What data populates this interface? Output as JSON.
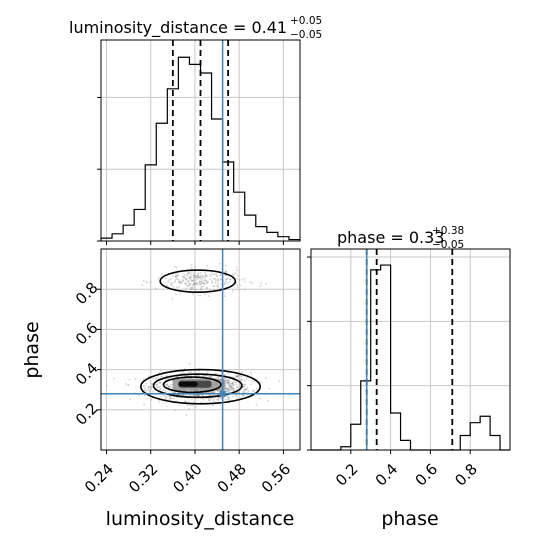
{
  "chart_data": {
    "type": "corner",
    "parameters": [
      "luminosity_distance",
      "phase"
    ],
    "truths": {
      "luminosity_distance": 0.45,
      "phase": 0.28
    },
    "colors": {
      "hist": "#000000",
      "truth": "#4682b4",
      "quantile": "#000000",
      "grid": "#c8c8c8",
      "points": "#808080"
    },
    "marginals": [
      {
        "parameter": "luminosity_distance",
        "title_text": "luminosity_distance = 0.41",
        "title_sup": "+0.05",
        "title_sub": "−0.05",
        "quantiles": [
          0.36,
          0.41,
          0.46
        ],
        "xlim": [
          0.23,
          0.59
        ],
        "xticks": [
          0.24,
          0.32,
          0.4,
          0.48,
          0.56
        ],
        "xtick_labels": [
          "0.24",
          "0.32",
          "0.40",
          "0.48",
          "0.56"
        ],
        "bin_edges": [
          0.23,
          0.25,
          0.27,
          0.29,
          0.31,
          0.33,
          0.35,
          0.37,
          0.39,
          0.41,
          0.43,
          0.45,
          0.47,
          0.49,
          0.51,
          0.53,
          0.55,
          0.57,
          0.59
        ],
        "counts": [
          2,
          5,
          11,
          22,
          53,
          82,
          106,
          128,
          123,
          117,
          85,
          55,
          34,
          18,
          10,
          6,
          3,
          1
        ],
        "ymax": 140,
        "yticks": [
          0,
          50,
          100
        ]
      },
      {
        "parameter": "phase",
        "title_text": "phase = 0.33",
        "title_sup": "+0.38",
        "title_sub": "−0.05",
        "quantiles": [
          0.28,
          0.33,
          0.71
        ],
        "xlim": [
          0.0,
          1.0
        ],
        "xticks": [
          0.2,
          0.4,
          0.6,
          0.8
        ],
        "xtick_labels": [
          "0.2",
          "0.4",
          "0.6",
          "0.8"
        ],
        "bin_edges": [
          0.0,
          0.05,
          0.1,
          0.15,
          0.2,
          0.25,
          0.3,
          0.35,
          0.4,
          0.45,
          0.5,
          0.55,
          0.6,
          0.65,
          0.7,
          0.75,
          0.8,
          0.85,
          0.9,
          0.95,
          1.0
        ],
        "counts": [
          0,
          0,
          0,
          2,
          16,
          43,
          112,
          115,
          23,
          6,
          0,
          0,
          0,
          0,
          0,
          9,
          17,
          21,
          9,
          0
        ],
        "ymax": 125,
        "yticks": [
          0,
          40,
          80,
          120
        ]
      }
    ],
    "joint": {
      "x": "luminosity_distance",
      "y": "phase",
      "xlim": [
        0.23,
        0.59
      ],
      "ylim": [
        0.0,
        1.0
      ],
      "xticks": [
        0.24,
        0.32,
        0.4,
        0.48,
        0.56
      ],
      "xtick_labels": [
        "0.24",
        "0.32",
        "0.40",
        "0.48",
        "0.56"
      ],
      "yticks": [
        0.2,
        0.4,
        0.6,
        0.8
      ],
      "ytick_labels": [
        "0.2",
        "0.4",
        "0.6",
        "0.8"
      ],
      "clusters": [
        {
          "cx": 0.41,
          "cy": 0.315,
          "sx": 0.045,
          "sy": 0.035,
          "n": 1100
        },
        {
          "cx": 0.41,
          "cy": 0.84,
          "sx": 0.04,
          "sy": 0.03,
          "n": 260
        }
      ],
      "contours": [
        {
          "cx": 0.405,
          "cy": 0.84,
          "rx": 0.068,
          "ry": 0.055
        },
        {
          "cx": 0.41,
          "cy": 0.315,
          "rx": 0.108,
          "ry": 0.085
        },
        {
          "cx": 0.405,
          "cy": 0.32,
          "rx": 0.08,
          "ry": 0.058
        },
        {
          "cx": 0.395,
          "cy": 0.325,
          "rx": 0.052,
          "ry": 0.038
        }
      ],
      "density_core": [
        {
          "x0": 0.36,
          "x1": 0.455,
          "y0": 0.295,
          "y1": 0.355,
          "shade": "#9a9a9a"
        },
        {
          "x0": 0.37,
          "x1": 0.43,
          "y0": 0.31,
          "y1": 0.345,
          "shade": "#3a3a3a"
        },
        {
          "x0": 0.37,
          "x1": 0.405,
          "y0": 0.315,
          "y1": 0.34,
          "shade": "#000000"
        }
      ]
    },
    "xlabels": [
      "luminosity_distance",
      "phase"
    ],
    "ylabels": [
      "phase"
    ]
  }
}
